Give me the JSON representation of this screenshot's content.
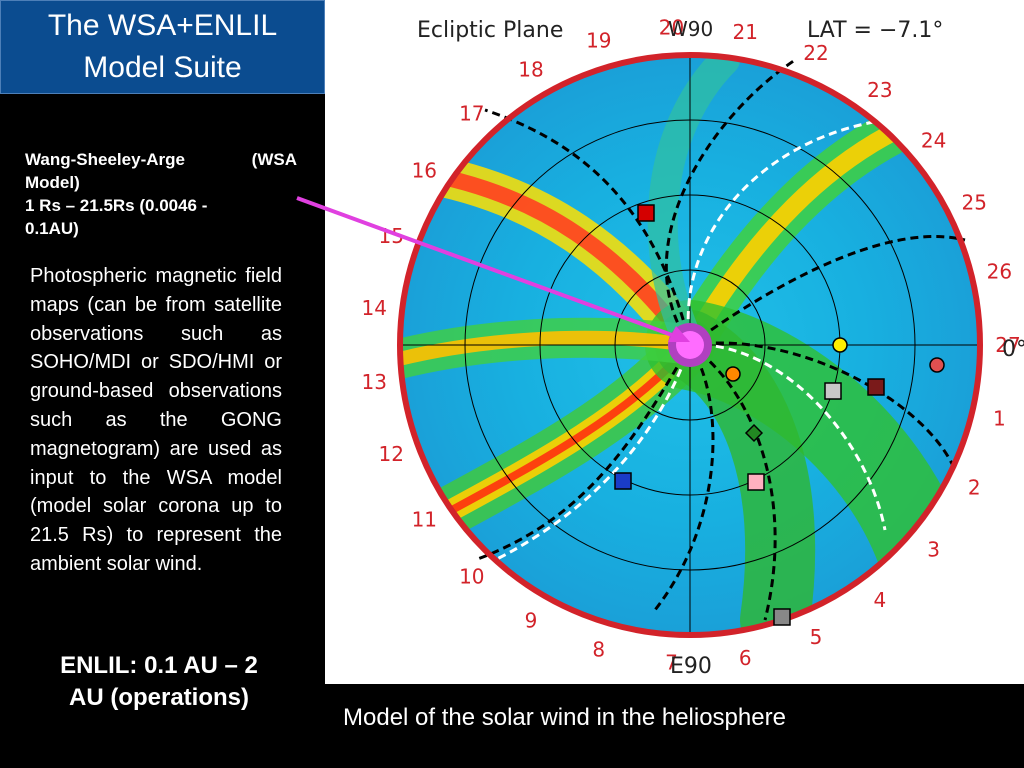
{
  "title": {
    "line1": "The WSA+ENLIL",
    "line2": "Model Suite"
  },
  "wsa": {
    "line1_left": "Wang-Sheeley-Arge",
    "line1_right": "(WSA",
    "line2": "Model)",
    "line3": "1 Rs – 21.5Rs (0.0046 -",
    "line4": "0.1AU)"
  },
  "photo_text": "Photospheric magnetic field maps (can be from satellite observations such as SOHO/MDI or SDO/HMI or ground-based observations such as the GONG magnetogram) are used as input to the WSA model (model solar corona up to 21.5 Rs) to represent the ambient solar wind.",
  "enlil": {
    "line1": "ENLIL: 0.1 AU – 2",
    "line2": "AU (operations)"
  },
  "caption": "Model of the solar wind in the heliosphere",
  "figure": {
    "plane_label": "Ecliptic Plane",
    "lat_label": "LAT = −7.1°",
    "top_marker": "W90",
    "bottom_marker": "E90",
    "right_marker": "0°",
    "rim_numbers": [
      "1",
      "2",
      "3",
      "4",
      "5",
      "6",
      "7",
      "8",
      "9",
      "10",
      "11",
      "12",
      "13",
      "14",
      "15",
      "16",
      "17",
      "18",
      "19",
      "20",
      "21",
      "22",
      "23",
      "24",
      "25",
      "26",
      "27"
    ]
  },
  "colors": {
    "title_bg": "#0b4c90",
    "arrow": "#e040e0",
    "rim": "#d2232a",
    "markers": [
      "#d40000",
      "#ffee00",
      "#ff8800",
      "#c8c8c8",
      "#7a1a1a",
      "#e05050",
      "#228822",
      "#ffb0c0",
      "#1a3cc8",
      "#888888"
    ]
  }
}
